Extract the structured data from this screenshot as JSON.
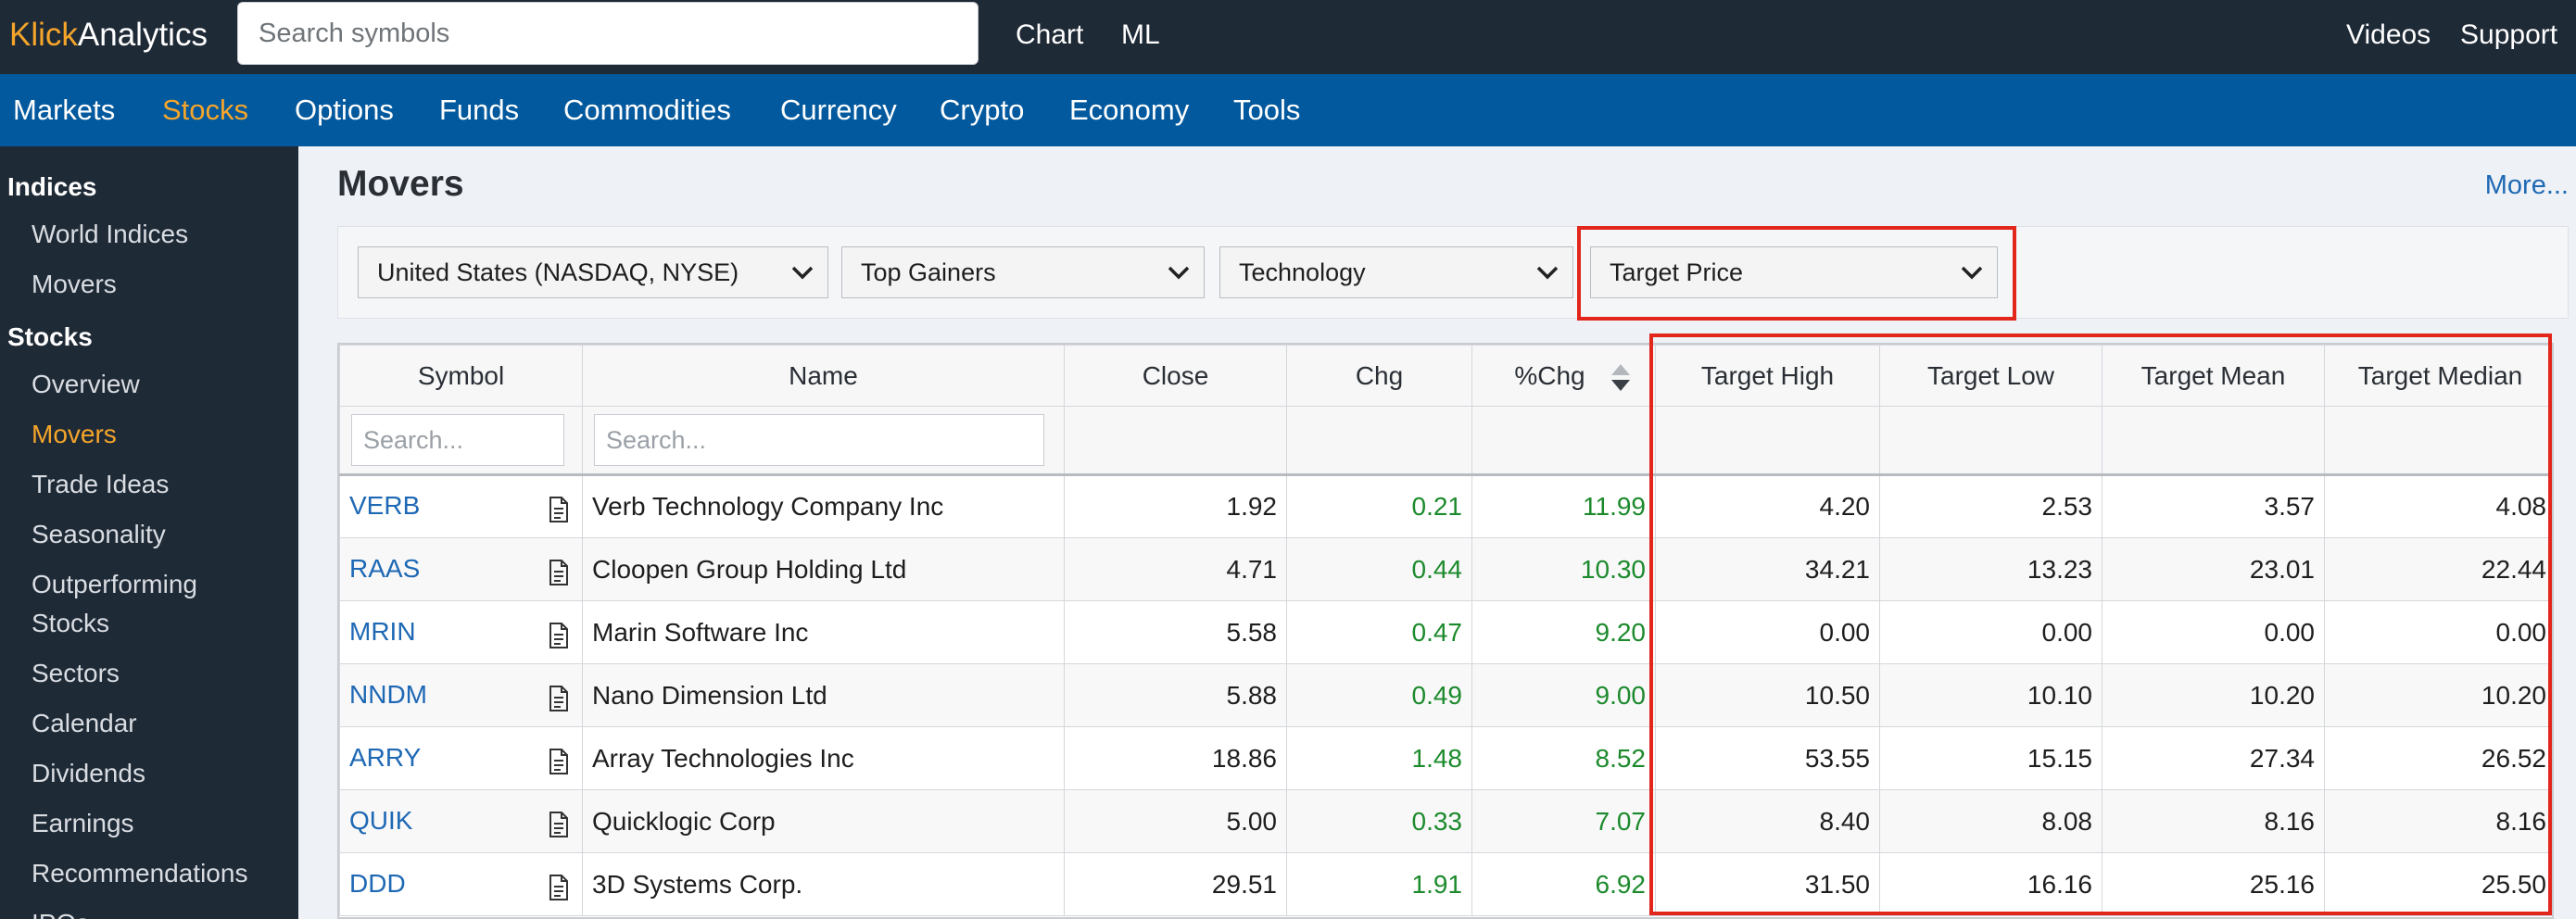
{
  "header": {
    "logo_accent": "Klick",
    "logo_rest": "Analytics",
    "search_placeholder": "Search symbols",
    "links": [
      "Chart",
      "ML"
    ],
    "right_links": [
      "Videos",
      "Support"
    ]
  },
  "nav": {
    "items": [
      "Markets",
      "Stocks",
      "Options",
      "Funds",
      "Commodities",
      "Currency",
      "Crypto",
      "Economy",
      "Tools"
    ],
    "active": "Stocks"
  },
  "sidebar": {
    "indices_heading": "Indices",
    "indices_items": [
      "World Indices",
      "Movers"
    ],
    "stocks_heading": "Stocks",
    "stocks_items": [
      "Overview",
      "Movers",
      "Trade Ideas",
      "Seasonality",
      "Outperforming Stocks",
      "Sectors",
      "Calendar",
      "Dividends",
      "Earnings",
      "Recommendations",
      "IPOs"
    ],
    "active": "Movers"
  },
  "main": {
    "title": "Movers",
    "more_link": "More...",
    "filters": {
      "market": "United States (NASDAQ, NYSE)",
      "mover_type": "Top Gainers",
      "sector": "Technology",
      "view": "Target Price"
    }
  },
  "table": {
    "columns": [
      "Symbol",
      "Name",
      "Close",
      "Chg",
      "%Chg",
      "Target High",
      "Target Low",
      "Target Mean",
      "Target Median"
    ],
    "search_placeholder": "Search...",
    "sorted_column": "%Chg",
    "rows": [
      {
        "symbol": "VERB",
        "name": "Verb Technology Company Inc",
        "close": "1.92",
        "chg": "0.21",
        "pct": "11.99",
        "high": "4.20",
        "low": "2.53",
        "mean": "3.57",
        "median": "4.08"
      },
      {
        "symbol": "RAAS",
        "name": "Cloopen Group Holding Ltd",
        "close": "4.71",
        "chg": "0.44",
        "pct": "10.30",
        "high": "34.21",
        "low": "13.23",
        "mean": "23.01",
        "median": "22.44"
      },
      {
        "symbol": "MRIN",
        "name": "Marin Software Inc",
        "close": "5.58",
        "chg": "0.47",
        "pct": "9.20",
        "high": "0.00",
        "low": "0.00",
        "mean": "0.00",
        "median": "0.00"
      },
      {
        "symbol": "NNDM",
        "name": "Nano Dimension Ltd",
        "close": "5.88",
        "chg": "0.49",
        "pct": "9.00",
        "high": "10.50",
        "low": "10.10",
        "mean": "10.20",
        "median": "10.20"
      },
      {
        "symbol": "ARRY",
        "name": "Array Technologies Inc",
        "close": "18.86",
        "chg": "1.48",
        "pct": "8.52",
        "high": "53.55",
        "low": "15.15",
        "mean": "27.34",
        "median": "26.52"
      },
      {
        "symbol": "QUIK",
        "name": "Quicklogic Corp",
        "close": "5.00",
        "chg": "0.33",
        "pct": "7.07",
        "high": "8.40",
        "low": "8.08",
        "mean": "8.16",
        "median": "8.16"
      },
      {
        "symbol": "DDD",
        "name": "3D Systems Corp.",
        "close": "29.51",
        "chg": "1.91",
        "pct": "6.92",
        "high": "31.50",
        "low": "16.16",
        "mean": "25.16",
        "median": "25.50"
      }
    ]
  },
  "colors": {
    "topbar": "#1f2a37",
    "navbar": "#03599d",
    "accent": "#f4a52a",
    "positive": "#1c8a2c",
    "link": "#1e68b4",
    "highlight": "#e2261b"
  }
}
